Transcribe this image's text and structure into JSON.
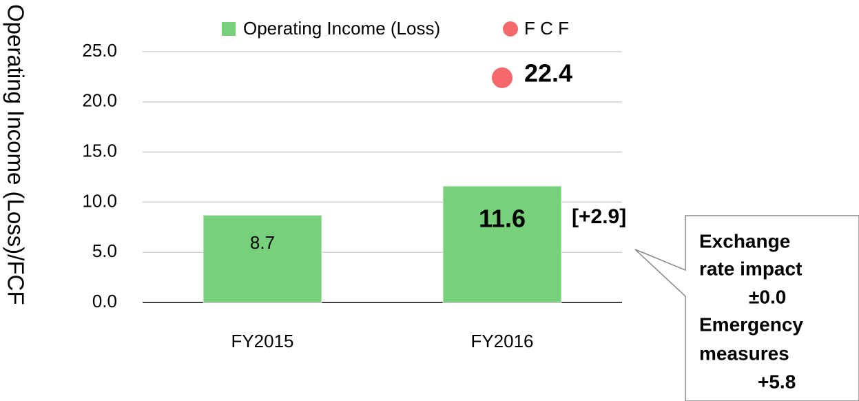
{
  "chart_data": {
    "type": "bar",
    "y_label": "Operating Income (Loss)/FCF",
    "categories": [
      "FY2015",
      "FY2016"
    ],
    "series": [
      {
        "name": "Operating Income (Loss)",
        "color": "#77d17a",
        "type": "bar",
        "values": [
          8.7,
          11.6
        ]
      },
      {
        "name": "F C F",
        "color": "#f4696b",
        "type": "scatter",
        "values": [
          null,
          22.4
        ]
      }
    ],
    "ylim": [
      0,
      25
    ],
    "yticks": [
      {
        "value": 0,
        "label": "0.0"
      },
      {
        "value": 5,
        "label": "5.0"
      },
      {
        "value": 10,
        "label": "10.0"
      },
      {
        "value": 15,
        "label": "15.0"
      },
      {
        "value": 20,
        "label": "20.0"
      },
      {
        "value": 25,
        "label": "25.0"
      }
    ],
    "grid": true,
    "legend": "top",
    "annotations": [
      "[+2.9]"
    ],
    "callout": [
      "Exchange",
      "rate impact",
      "±0.0",
      "Emergency",
      "measures",
      "+5.8"
    ]
  }
}
